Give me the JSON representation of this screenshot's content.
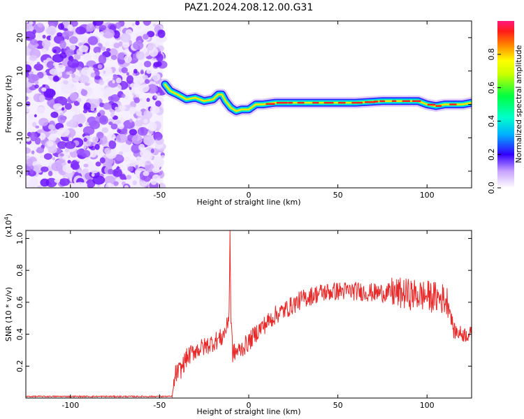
{
  "title": "PAZ1.2024.208.12.00.G31",
  "spectrogram": {
    "xlabel": "Height of straight line (km)",
    "ylabel": "Frequency (Hz)",
    "xticks": [
      "-100",
      "-50",
      "0",
      "50",
      "100"
    ],
    "yticks": [
      "-20",
      "-10",
      "0",
      "10",
      "20"
    ]
  },
  "colorbar": {
    "label": "Normalized spectral amplitude",
    "ticks": [
      "0.0",
      "0.2",
      "0.4",
      "0.6",
      "0.8"
    ]
  },
  "snr_plot": {
    "xlabel": "Height of straight line (km)",
    "ylabel": "SNR (10 * v/v)",
    "multiplier": "(x10",
    "multiplier_exp": "4",
    "multiplier_close": ")",
    "xticks": [
      "-100",
      "-50",
      "0",
      "50",
      "100"
    ],
    "yticks": [
      "0.2",
      "0.4",
      "0.6",
      "0.8",
      "1.0"
    ]
  },
  "chart_data": [
    {
      "type": "heatmap",
      "title": "PAZ1.2024.208.12.00.G31",
      "xlabel": "Height of straight line (km)",
      "ylabel": "Frequency (Hz)",
      "xlim": [
        -125,
        125
      ],
      "ylim": [
        -25,
        25
      ],
      "colorbar_label": "Normalized spectral amplitude",
      "colorbar_range": [
        0,
        1
      ],
      "noise_region_x": [
        -125,
        -48
      ],
      "ridge": {
        "x": [
          -47,
          -44,
          -40,
          -35,
          -30,
          -25,
          -20,
          -17,
          -15,
          -13,
          -10,
          -7,
          -4,
          0,
          4,
          8,
          15,
          25,
          35,
          45,
          60,
          75,
          85,
          90,
          95,
          100,
          105,
          110,
          115,
          120,
          125
        ],
        "freq": [
          6,
          4,
          3,
          1.5,
          2,
          1,
          1.5,
          3,
          3,
          1,
          -1,
          -2,
          -1.5,
          -1.5,
          0,
          0,
          0.5,
          0.5,
          0.5,
          0.5,
          0.5,
          1,
          1,
          1,
          1,
          0,
          -0.5,
          0,
          0,
          0,
          0.5
        ]
      }
    },
    {
      "type": "line",
      "xlabel": "Height of straight line (km)",
      "ylabel": "SNR (10 * v/v)",
      "xlim": [
        -125,
        125
      ],
      "ylim": [
        0,
        1.05
      ],
      "y_multiplier": 10000,
      "series": [
        {
          "color": "#e82a2a",
          "x": [
            -125,
            -100,
            -75,
            -50,
            -43,
            -41,
            -38,
            -35,
            -30,
            -25,
            -20,
            -15,
            -12,
            -11,
            -10.5,
            -10,
            -9,
            -5,
            0,
            5,
            10,
            15,
            20,
            30,
            40,
            50,
            60,
            70,
            80,
            90,
            100,
            105,
            110,
            112,
            115,
            120,
            125
          ],
          "y": [
            0.01,
            0.01,
            0.01,
            0.01,
            0.01,
            0.15,
            0.18,
            0.25,
            0.3,
            0.32,
            0.35,
            0.38,
            0.45,
            0.55,
            1.05,
            0.5,
            0.28,
            0.3,
            0.35,
            0.42,
            0.47,
            0.52,
            0.55,
            0.62,
            0.66,
            0.67,
            0.67,
            0.66,
            0.66,
            0.65,
            0.64,
            0.63,
            0.62,
            0.6,
            0.42,
            0.4,
            0.4
          ]
        }
      ]
    }
  ]
}
